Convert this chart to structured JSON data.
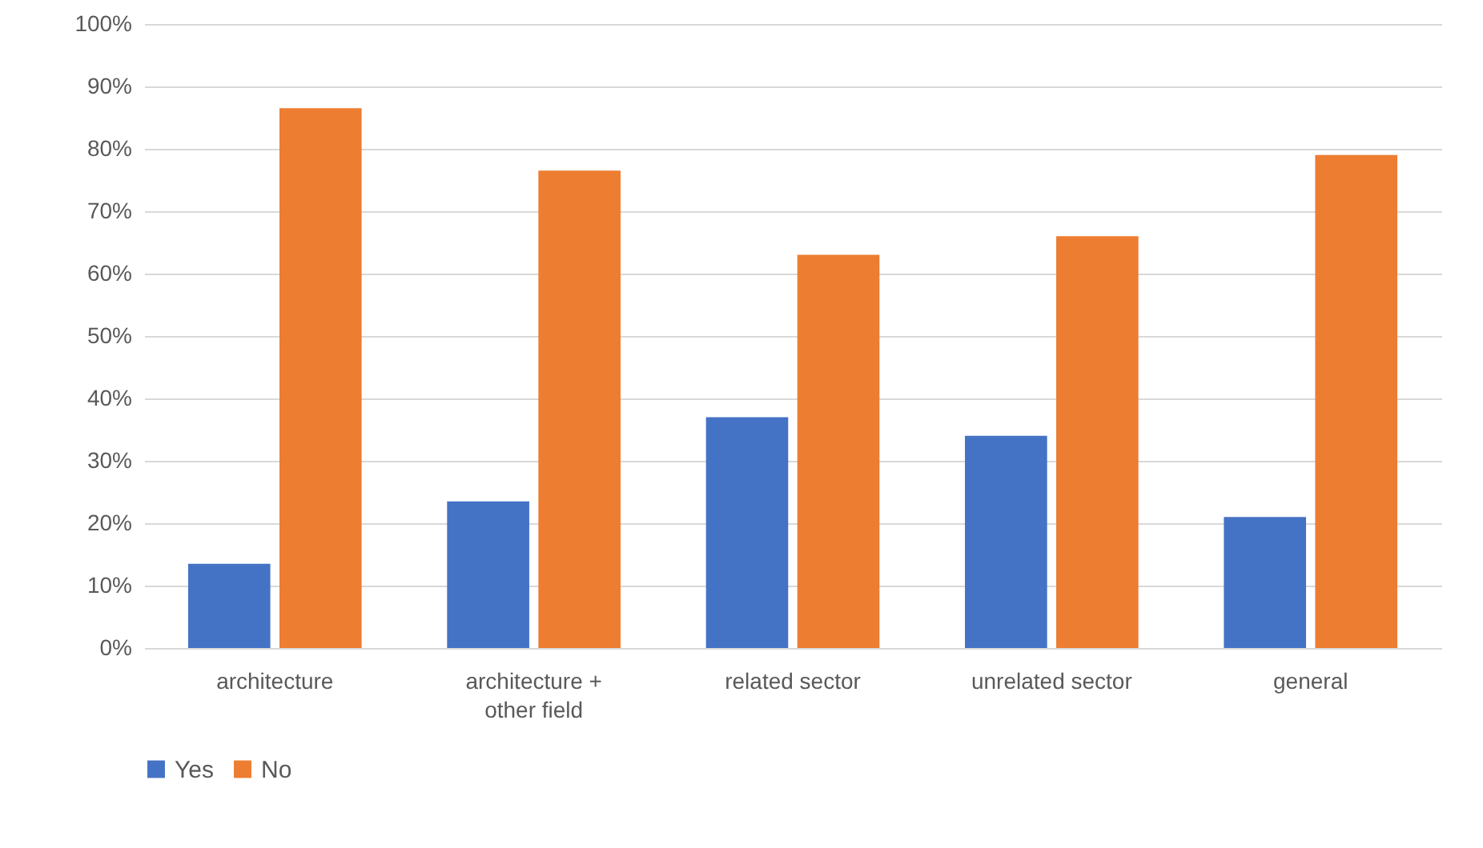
{
  "chart_data": {
    "type": "bar",
    "categories": [
      "architecture",
      "architecture + other field",
      "related sector",
      "unrelated sector",
      "general"
    ],
    "series": [
      {
        "name": "Yes",
        "color": "#4472c4",
        "values": [
          13.5,
          23.5,
          37,
          34,
          21
        ]
      },
      {
        "name": "No",
        "color": "#ed7d31",
        "values": [
          86.5,
          76.5,
          63,
          66,
          79
        ]
      }
    ],
    "ylim": [
      0,
      100
    ],
    "yticks": [
      {
        "value": 0,
        "label": "0%"
      },
      {
        "value": 10,
        "label": "10%"
      },
      {
        "value": 20,
        "label": "20%"
      },
      {
        "value": 30,
        "label": "30%"
      },
      {
        "value": 40,
        "label": "40%"
      },
      {
        "value": 50,
        "label": "50%"
      },
      {
        "value": 60,
        "label": "60%"
      },
      {
        "value": 70,
        "label": "70%"
      },
      {
        "value": 80,
        "label": "80%"
      },
      {
        "value": 90,
        "label": "90%"
      },
      {
        "value": 100,
        "label": "100%"
      }
    ],
    "grid": "y",
    "legend": "bottom"
  }
}
